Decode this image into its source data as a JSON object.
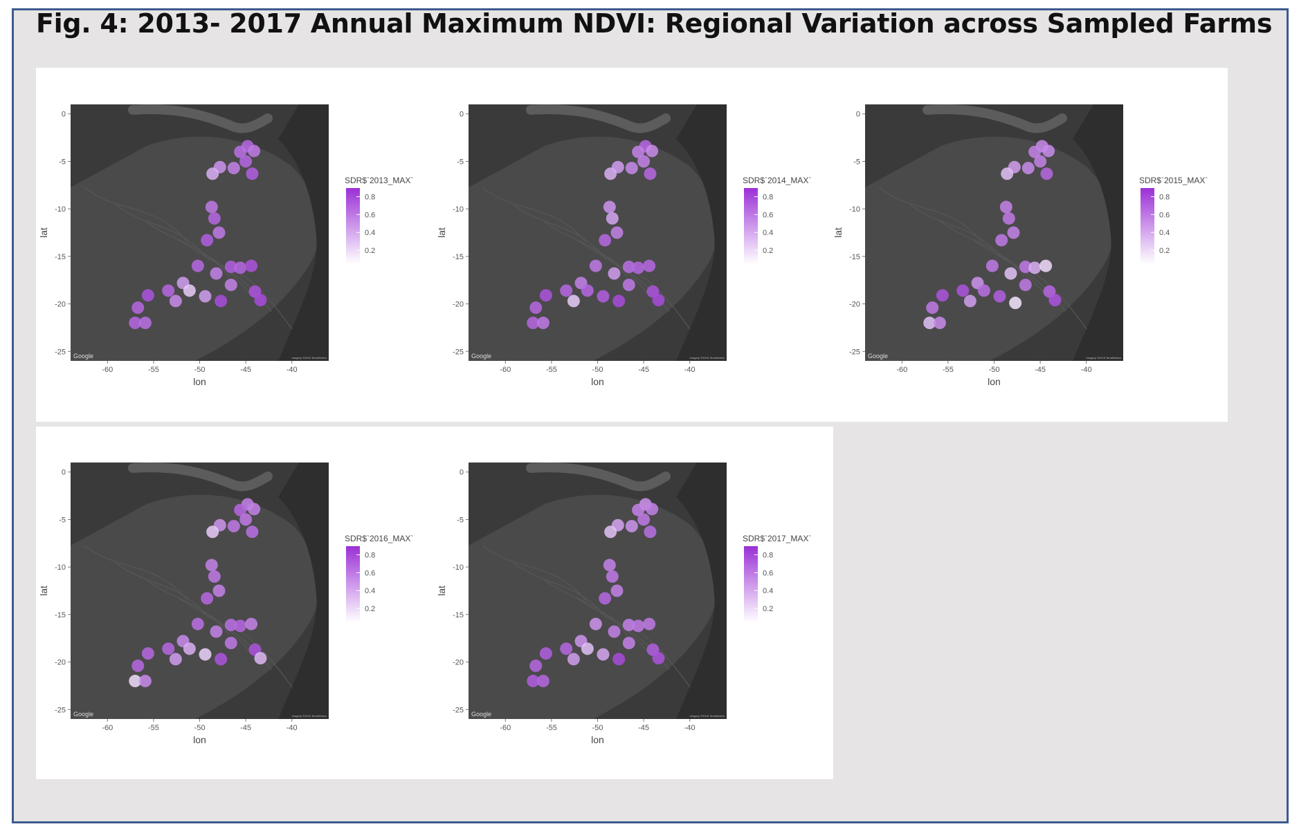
{
  "figure": {
    "title": "Fig. 4: 2013- 2017 Annual Maximum NDVI: Regional Variation across Sampled Farms"
  },
  "common": {
    "x_axis_label": "lon",
    "y_axis_label": "lat",
    "x_ticks": [
      "-60",
      "-55",
      "-50",
      "-45",
      "-40"
    ],
    "y_ticks": [
      "0",
      "-5",
      "-10",
      "-15",
      "-20",
      "-25"
    ],
    "legend_ticks": [
      "0.8",
      "0.6",
      "0.4",
      "0.2"
    ],
    "map_credit": "Google",
    "imagery_credit": "Imagery ©2018 TerraMetrics",
    "colors": {
      "low": "#f4e6ff",
      "high": "#9b30d6",
      "map_dark": "#3a3a3a",
      "frame_border": "#3d5a8f",
      "background": "#e6e4e5"
    }
  },
  "chart_data": [
    {
      "type": "scatter",
      "year": "2013",
      "legend_title": "SDR$`2013_MAX`",
      "xlabel": "lon",
      "ylabel": "lat",
      "xlim": [
        -64,
        -36
      ],
      "ylim": [
        -26,
        1
      ],
      "points": [
        {
          "lon": -44.8,
          "lat": -3.4,
          "ndvi": 0.7
        },
        {
          "lon": -45.6,
          "lat": -4.0,
          "ndvi": 0.65
        },
        {
          "lon": -44.1,
          "lat": -3.9,
          "ndvi": 0.6
        },
        {
          "lon": -45.0,
          "lat": -5.0,
          "ndvi": 0.7
        },
        {
          "lon": -44.3,
          "lat": -6.3,
          "ndvi": 0.75
        },
        {
          "lon": -46.3,
          "lat": -5.7,
          "ndvi": 0.55
        },
        {
          "lon": -47.8,
          "lat": -5.6,
          "ndvi": 0.45
        },
        {
          "lon": -48.6,
          "lat": -6.3,
          "ndvi": 0.3
        },
        {
          "lon": -48.7,
          "lat": -9.8,
          "ndvi": 0.6
        },
        {
          "lon": -48.4,
          "lat": -11.0,
          "ndvi": 0.7
        },
        {
          "lon": -47.9,
          "lat": -12.5,
          "ndvi": 0.6
        },
        {
          "lon": -49.2,
          "lat": -13.3,
          "ndvi": 0.75
        },
        {
          "lon": -50.2,
          "lat": -16.0,
          "ndvi": 0.7
        },
        {
          "lon": -48.2,
          "lat": -16.8,
          "ndvi": 0.55
        },
        {
          "lon": -46.6,
          "lat": -16.1,
          "ndvi": 0.75
        },
        {
          "lon": -45.6,
          "lat": -16.2,
          "ndvi": 0.7
        },
        {
          "lon": -44.4,
          "lat": -16.0,
          "ndvi": 0.8
        },
        {
          "lon": -46.6,
          "lat": -18.0,
          "ndvi": 0.55
        },
        {
          "lon": -51.8,
          "lat": -17.8,
          "ndvi": 0.4
        },
        {
          "lon": -51.1,
          "lat": -18.6,
          "ndvi": 0.15
        },
        {
          "lon": -49.4,
          "lat": -19.2,
          "ndvi": 0.4
        },
        {
          "lon": -47.7,
          "lat": -19.7,
          "ndvi": 0.85
        },
        {
          "lon": -53.4,
          "lat": -18.6,
          "ndvi": 0.7
        },
        {
          "lon": -52.6,
          "lat": -19.7,
          "ndvi": 0.5
        },
        {
          "lon": -44.0,
          "lat": -18.7,
          "ndvi": 0.8
        },
        {
          "lon": -43.4,
          "lat": -19.6,
          "ndvi": 0.85
        },
        {
          "lon": -55.6,
          "lat": -19.1,
          "ndvi": 0.8
        },
        {
          "lon": -56.7,
          "lat": -20.4,
          "ndvi": 0.7
        },
        {
          "lon": -57.0,
          "lat": -22.0,
          "ndvi": 0.7
        },
        {
          "lon": -55.9,
          "lat": -22.0,
          "ndvi": 0.65
        }
      ]
    },
    {
      "type": "scatter",
      "year": "2014",
      "legend_title": "SDR$`2014_MAX`",
      "xlabel": "lon",
      "ylabel": "lat",
      "xlim": [
        -64,
        -36
      ],
      "ylim": [
        -26,
        1
      ],
      "points": [
        {
          "lon": -44.8,
          "lat": -3.4,
          "ndvi": 0.7
        },
        {
          "lon": -45.6,
          "lat": -4.0,
          "ndvi": 0.55
        },
        {
          "lon": -44.1,
          "lat": -3.9,
          "ndvi": 0.5
        },
        {
          "lon": -45.0,
          "lat": -5.0,
          "ndvi": 0.55
        },
        {
          "lon": -44.3,
          "lat": -6.3,
          "ndvi": 0.7
        },
        {
          "lon": -46.3,
          "lat": -5.7,
          "ndvi": 0.5
        },
        {
          "lon": -47.8,
          "lat": -5.6,
          "ndvi": 0.4
        },
        {
          "lon": -48.6,
          "lat": -6.3,
          "ndvi": 0.3
        },
        {
          "lon": -48.7,
          "lat": -9.8,
          "ndvi": 0.45
        },
        {
          "lon": -48.4,
          "lat": -11.0,
          "ndvi": 0.35
        },
        {
          "lon": -47.9,
          "lat": -12.5,
          "ndvi": 0.55
        },
        {
          "lon": -49.2,
          "lat": -13.3,
          "ndvi": 0.7
        },
        {
          "lon": -50.2,
          "lat": -16.0,
          "ndvi": 0.6
        },
        {
          "lon": -48.2,
          "lat": -16.8,
          "ndvi": 0.4
        },
        {
          "lon": -46.6,
          "lat": -16.1,
          "ndvi": 0.65
        },
        {
          "lon": -45.6,
          "lat": -16.2,
          "ndvi": 0.7
        },
        {
          "lon": -44.4,
          "lat": -16.0,
          "ndvi": 0.7
        },
        {
          "lon": -46.6,
          "lat": -18.0,
          "ndvi": 0.6
        },
        {
          "lon": -51.8,
          "lat": -17.8,
          "ndvi": 0.55
        },
        {
          "lon": -51.1,
          "lat": -18.6,
          "ndvi": 0.7
        },
        {
          "lon": -49.4,
          "lat": -19.2,
          "ndvi": 0.75
        },
        {
          "lon": -47.7,
          "lat": -19.7,
          "ndvi": 0.85
        },
        {
          "lon": -53.4,
          "lat": -18.6,
          "ndvi": 0.7
        },
        {
          "lon": -52.6,
          "lat": -19.7,
          "ndvi": 0.15
        },
        {
          "lon": -44.0,
          "lat": -18.7,
          "ndvi": 0.8
        },
        {
          "lon": -43.4,
          "lat": -19.6,
          "ndvi": 0.85
        },
        {
          "lon": -55.6,
          "lat": -19.1,
          "ndvi": 0.8
        },
        {
          "lon": -56.7,
          "lat": -20.4,
          "ndvi": 0.7
        },
        {
          "lon": -57.0,
          "lat": -22.0,
          "ndvi": 0.7
        },
        {
          "lon": -55.9,
          "lat": -22.0,
          "ndvi": 0.6
        }
      ]
    },
    {
      "type": "scatter",
      "year": "2015",
      "legend_title": "SDR$`2015_MAX`",
      "xlabel": "lon",
      "ylabel": "lat",
      "xlim": [
        -64,
        -36
      ],
      "ylim": [
        -26,
        1
      ],
      "points": [
        {
          "lon": -44.8,
          "lat": -3.4,
          "ndvi": 0.5
        },
        {
          "lon": -45.6,
          "lat": -4.0,
          "ndvi": 0.55
        },
        {
          "lon": -44.1,
          "lat": -3.9,
          "ndvi": 0.5
        },
        {
          "lon": -45.0,
          "lat": -5.0,
          "ndvi": 0.55
        },
        {
          "lon": -44.3,
          "lat": -6.3,
          "ndvi": 0.7
        },
        {
          "lon": -46.3,
          "lat": -5.7,
          "ndvi": 0.5
        },
        {
          "lon": -47.8,
          "lat": -5.6,
          "ndvi": 0.4
        },
        {
          "lon": -48.6,
          "lat": -6.3,
          "ndvi": 0.2
        },
        {
          "lon": -48.7,
          "lat": -9.8,
          "ndvi": 0.55
        },
        {
          "lon": -48.4,
          "lat": -11.0,
          "ndvi": 0.6
        },
        {
          "lon": -47.9,
          "lat": -12.5,
          "ndvi": 0.55
        },
        {
          "lon": -49.2,
          "lat": -13.3,
          "ndvi": 0.6
        },
        {
          "lon": -50.2,
          "lat": -16.0,
          "ndvi": 0.6
        },
        {
          "lon": -48.2,
          "lat": -16.8,
          "ndvi": 0.2
        },
        {
          "lon": -46.6,
          "lat": -16.1,
          "ndvi": 0.6
        },
        {
          "lon": -45.6,
          "lat": -16.2,
          "ndvi": 0.3
        },
        {
          "lon": -44.4,
          "lat": -16.0,
          "ndvi": 0.05
        },
        {
          "lon": -46.6,
          "lat": -18.0,
          "ndvi": 0.6
        },
        {
          "lon": -51.8,
          "lat": -17.8,
          "ndvi": 0.45
        },
        {
          "lon": -51.1,
          "lat": -18.6,
          "ndvi": 0.65
        },
        {
          "lon": -49.4,
          "lat": -19.2,
          "ndvi": 0.75
        },
        {
          "lon": -47.7,
          "lat": -19.9,
          "ndvi": 0.0
        },
        {
          "lon": -53.4,
          "lat": -18.6,
          "ndvi": 0.8
        },
        {
          "lon": -52.6,
          "lat": -19.7,
          "ndvi": 0.4
        },
        {
          "lon": -44.0,
          "lat": -18.7,
          "ndvi": 0.7
        },
        {
          "lon": -43.4,
          "lat": -19.6,
          "ndvi": 0.8
        },
        {
          "lon": -55.6,
          "lat": -19.1,
          "ndvi": 0.8
        },
        {
          "lon": -56.7,
          "lat": -20.4,
          "ndvi": 0.6
        },
        {
          "lon": -57.0,
          "lat": -22.0,
          "ndvi": 0.2
        },
        {
          "lon": -55.9,
          "lat": -22.0,
          "ndvi": 0.5
        }
      ]
    },
    {
      "type": "scatter",
      "year": "2016",
      "legend_title": "SDR$`2016_MAX`",
      "xlabel": "lon",
      "ylabel": "lat",
      "xlim": [
        -64,
        -36
      ],
      "ylim": [
        -26,
        1
      ],
      "points": [
        {
          "lon": -44.8,
          "lat": -3.4,
          "ndvi": 0.55
        },
        {
          "lon": -45.6,
          "lat": -4.0,
          "ndvi": 0.7
        },
        {
          "lon": -44.1,
          "lat": -3.9,
          "ndvi": 0.55
        },
        {
          "lon": -45.0,
          "lat": -5.0,
          "ndvi": 0.6
        },
        {
          "lon": -44.3,
          "lat": -6.3,
          "ndvi": 0.65
        },
        {
          "lon": -46.3,
          "lat": -5.7,
          "ndvi": 0.6
        },
        {
          "lon": -47.8,
          "lat": -5.6,
          "ndvi": 0.45
        },
        {
          "lon": -48.6,
          "lat": -6.3,
          "ndvi": 0.15
        },
        {
          "lon": -48.7,
          "lat": -9.8,
          "ndvi": 0.55
        },
        {
          "lon": -48.4,
          "lat": -11.0,
          "ndvi": 0.6
        },
        {
          "lon": -47.9,
          "lat": -12.5,
          "ndvi": 0.55
        },
        {
          "lon": -49.2,
          "lat": -13.3,
          "ndvi": 0.7
        },
        {
          "lon": -50.2,
          "lat": -16.0,
          "ndvi": 0.65
        },
        {
          "lon": -48.2,
          "lat": -16.8,
          "ndvi": 0.55
        },
        {
          "lon": -46.6,
          "lat": -16.1,
          "ndvi": 0.65
        },
        {
          "lon": -45.6,
          "lat": -16.2,
          "ndvi": 0.7
        },
        {
          "lon": -44.4,
          "lat": -16.0,
          "ndvi": 0.55
        },
        {
          "lon": -46.6,
          "lat": -18.0,
          "ndvi": 0.6
        },
        {
          "lon": -51.8,
          "lat": -17.8,
          "ndvi": 0.5
        },
        {
          "lon": -51.1,
          "lat": -18.6,
          "ndvi": 0.3
        },
        {
          "lon": -49.4,
          "lat": -19.2,
          "ndvi": 0.1
        },
        {
          "lon": -47.7,
          "lat": -19.7,
          "ndvi": 0.8
        },
        {
          "lon": -53.4,
          "lat": -18.6,
          "ndvi": 0.7
        },
        {
          "lon": -52.6,
          "lat": -19.7,
          "ndvi": 0.4
        },
        {
          "lon": -44.0,
          "lat": -18.7,
          "ndvi": 0.8
        },
        {
          "lon": -43.4,
          "lat": -19.6,
          "ndvi": 0.25
        },
        {
          "lon": -55.6,
          "lat": -19.1,
          "ndvi": 0.7
        },
        {
          "lon": -56.7,
          "lat": -20.4,
          "ndvi": 0.7
        },
        {
          "lon": -57.0,
          "lat": -22.0,
          "ndvi": 0.05
        },
        {
          "lon": -55.9,
          "lat": -22.0,
          "ndvi": 0.5
        }
      ]
    },
    {
      "type": "scatter",
      "year": "2017",
      "legend_title": "SDR$`2017_MAX`",
      "xlabel": "lon",
      "ylabel": "lat",
      "xlim": [
        -64,
        -36
      ],
      "ylim": [
        -26,
        1
      ],
      "points": [
        {
          "lon": -44.8,
          "lat": -3.4,
          "ndvi": 0.45
        },
        {
          "lon": -45.6,
          "lat": -4.0,
          "ndvi": 0.55
        },
        {
          "lon": -44.1,
          "lat": -3.9,
          "ndvi": 0.55
        },
        {
          "lon": -45.0,
          "lat": -5.0,
          "ndvi": 0.6
        },
        {
          "lon": -44.3,
          "lat": -6.3,
          "ndvi": 0.65
        },
        {
          "lon": -46.3,
          "lat": -5.7,
          "ndvi": 0.45
        },
        {
          "lon": -47.8,
          "lat": -5.6,
          "ndvi": 0.35
        },
        {
          "lon": -48.6,
          "lat": -6.3,
          "ndvi": 0.2
        },
        {
          "lon": -48.7,
          "lat": -9.8,
          "ndvi": 0.55
        },
        {
          "lon": -48.4,
          "lat": -11.0,
          "ndvi": 0.6
        },
        {
          "lon": -47.9,
          "lat": -12.5,
          "ndvi": 0.55
        },
        {
          "lon": -49.2,
          "lat": -13.3,
          "ndvi": 0.7
        },
        {
          "lon": -50.2,
          "lat": -16.0,
          "ndvi": 0.45
        },
        {
          "lon": -48.2,
          "lat": -16.8,
          "ndvi": 0.55
        },
        {
          "lon": -46.6,
          "lat": -16.1,
          "ndvi": 0.55
        },
        {
          "lon": -45.6,
          "lat": -16.2,
          "ndvi": 0.6
        },
        {
          "lon": -44.4,
          "lat": -16.0,
          "ndvi": 0.6
        },
        {
          "lon": -46.6,
          "lat": -18.0,
          "ndvi": 0.55
        },
        {
          "lon": -51.8,
          "lat": -17.8,
          "ndvi": 0.45
        },
        {
          "lon": -51.1,
          "lat": -18.6,
          "ndvi": 0.2
        },
        {
          "lon": -49.4,
          "lat": -19.2,
          "ndvi": 0.35
        },
        {
          "lon": -47.7,
          "lat": -19.7,
          "ndvi": 0.85
        },
        {
          "lon": -53.4,
          "lat": -18.6,
          "ndvi": 0.7
        },
        {
          "lon": -52.6,
          "lat": -19.7,
          "ndvi": 0.4
        },
        {
          "lon": -44.0,
          "lat": -18.7,
          "ndvi": 0.75
        },
        {
          "lon": -43.4,
          "lat": -19.6,
          "ndvi": 0.8
        },
        {
          "lon": -55.6,
          "lat": -19.1,
          "ndvi": 0.75
        },
        {
          "lon": -56.7,
          "lat": -20.4,
          "ndvi": 0.7
        },
        {
          "lon": -57.0,
          "lat": -22.0,
          "ndvi": 0.75
        },
        {
          "lon": -55.9,
          "lat": -22.0,
          "ndvi": 0.7
        }
      ]
    }
  ]
}
